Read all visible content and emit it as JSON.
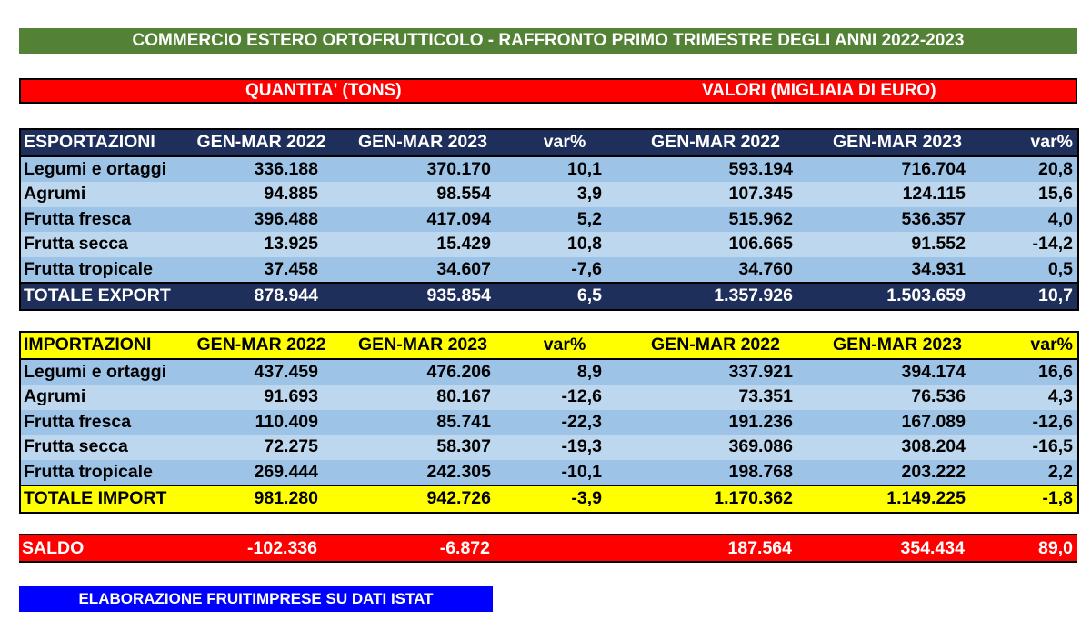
{
  "title": "COMMERCIO ESTERO ORTOFRUTTICOLO - RAFFRONTO PRIMO TRIMESTRE DEGLI ANNI 2022-2023",
  "section_labels": {
    "quantity": "QUANTITA' (TONS)",
    "values": "VALORI (MIGLIAIA DI EURO)"
  },
  "export": {
    "header": [
      "ESPORTAZIONI",
      "GEN-MAR 2022",
      "GEN-MAR 2023",
      "var%",
      "GEN-MAR 2022",
      "GEN-MAR 2023",
      "var%"
    ],
    "rows": [
      [
        "Legumi e ortaggi",
        "336.188",
        "370.170",
        "10,1",
        "593.194",
        "716.704",
        "20,8"
      ],
      [
        "Agrumi",
        "94.885",
        "98.554",
        "3,9",
        "107.345",
        "124.115",
        "15,6"
      ],
      [
        "Frutta fresca",
        "396.488",
        "417.094",
        "5,2",
        "515.962",
        "536.357",
        "4,0"
      ],
      [
        "Frutta secca",
        "13.925",
        "15.429",
        "10,8",
        "106.665",
        "91.552",
        "-14,2"
      ],
      [
        "Frutta tropicale",
        "37.458",
        "34.607",
        "-7,6",
        "34.760",
        "34.931",
        "0,5"
      ]
    ],
    "total": [
      "TOTALE EXPORT",
      "878.944",
      "935.854",
      "6,5",
      "1.357.926",
      "1.503.659",
      "10,7"
    ]
  },
  "import": {
    "header": [
      "IMPORTAZIONI",
      "GEN-MAR 2022",
      "GEN-MAR 2023",
      "var%",
      "GEN-MAR 2022",
      "GEN-MAR 2023",
      "var%"
    ],
    "rows": [
      [
        "Legumi e ortaggi",
        "437.459",
        "476.206",
        "8,9",
        "337.921",
        "394.174",
        "16,6"
      ],
      [
        "Agrumi",
        "91.693",
        "80.167",
        "-12,6",
        "73.351",
        "76.536",
        "4,3"
      ],
      [
        "Frutta fresca",
        "110.409",
        "85.741",
        "-22,3",
        "191.236",
        "167.089",
        "-12,6"
      ],
      [
        "Frutta secca",
        "72.275",
        "58.307",
        "-19,3",
        "369.086",
        "308.204",
        "-16,5"
      ],
      [
        "Frutta tropicale",
        "269.444",
        "242.305",
        "-10,1",
        "198.768",
        "203.222",
        "2,2"
      ]
    ],
    "total": [
      "TOTALE IMPORT",
      "981.280",
      "942.726",
      "-3,9",
      "1.170.362",
      "1.149.225",
      "-1,8"
    ]
  },
  "saldo": [
    "SALDO",
    "-102.336",
    "-6.872",
    "",
    "187.564",
    "354.434",
    "89,0"
  ],
  "source": "ELABORAZIONE FRUITIMPRESE SU DATI ISTAT",
  "colors": {
    "title_bg": "#538135",
    "red": "#ff0000",
    "navy": "#1f2f5c",
    "yellow": "#ffff00",
    "row_blue": "#9dc3e6",
    "source_blue": "#0000ff"
  }
}
